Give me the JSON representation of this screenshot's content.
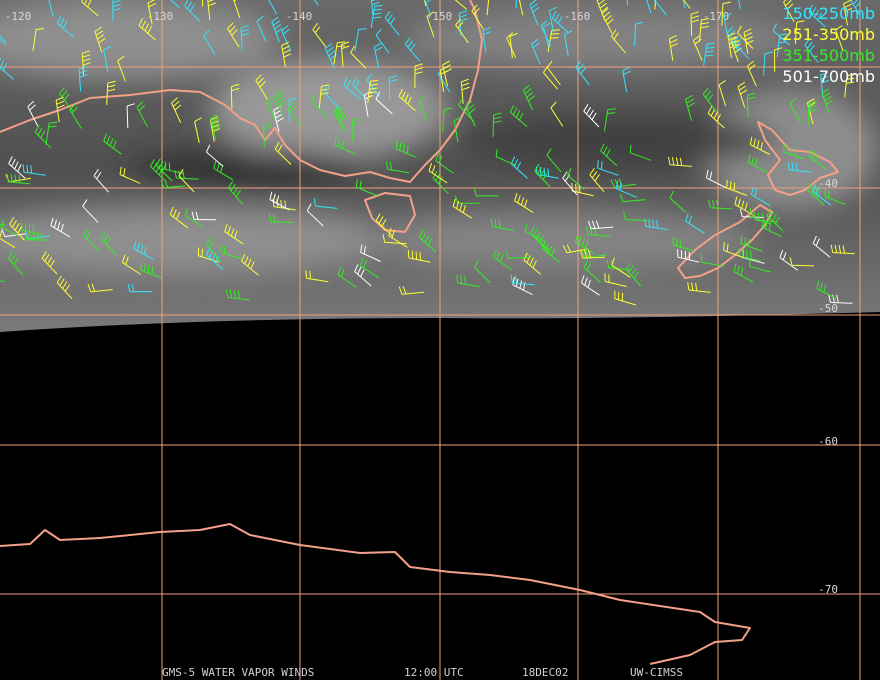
{
  "map": {
    "lon_labels": [
      "-120",
      "-130",
      "-140",
      "-150",
      "-160",
      "-170"
    ],
    "lat_labels": [
      "-40",
      "-50",
      "-60",
      "-70"
    ],
    "legend": [
      {
        "label": "150-250mb",
        "color": "#33e6ff"
      },
      {
        "label": "251-350mb",
        "color": "#ffff33"
      },
      {
        "label": "351-500mb",
        "color": "#33ee22"
      },
      {
        "label": "501-700mb",
        "color": "#ffffff"
      }
    ],
    "footer": [
      "GMS-5 WATER VAPOR WINDS",
      "12:00 UTC",
      "18DEC02",
      "UW-CIMSS"
    ]
  }
}
